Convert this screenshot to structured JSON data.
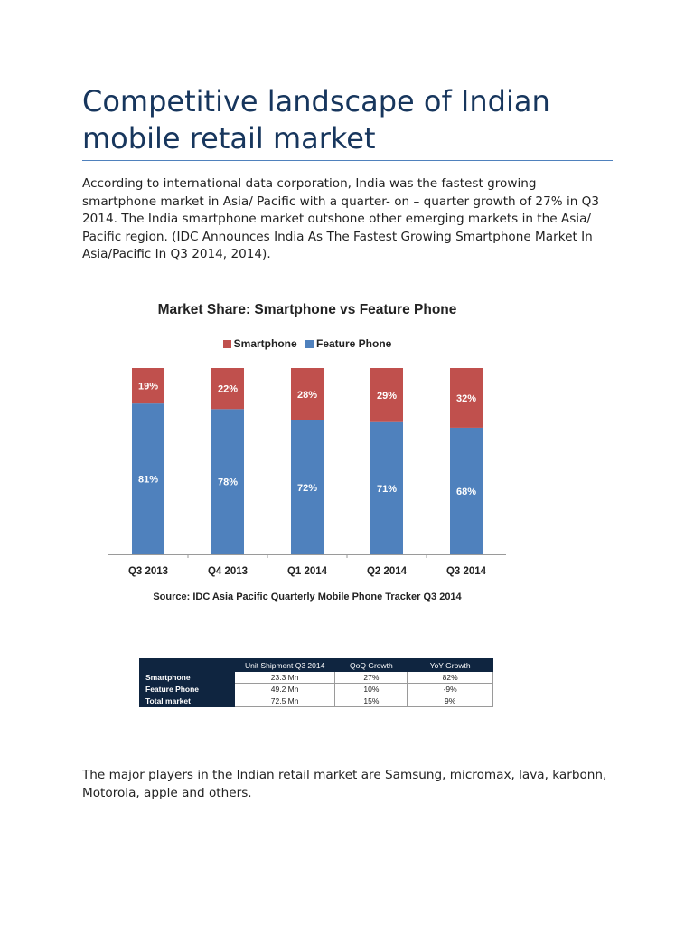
{
  "title": "Competitive landscape of Indian mobile retail market",
  "intro": "According to international data corporation, India was the fastest growing smartphone market in Asia/ Pacific with a quarter- on – quarter growth of 27% in Q3 2014. The India smartphone market outshone other emerging markets in the Asia/ Pacific region. (IDC Announces India As The Fastest Growing Smartphone Market In Asia/Pacific In Q3 2014, 2014).",
  "closing": "The major players in the Indian retail market are Samsung, micromax, lava, karbonn, Motorola, apple and others.",
  "colors": {
    "smartphone": "#c0504d",
    "feature_phone": "#4f81bd",
    "title": "#17365d"
  },
  "chart_data": {
    "type": "bar",
    "stacked": true,
    "title": "Market Share: Smartphone vs Feature Phone",
    "source": "Source: IDC Asia Pacific Quarterly Mobile Phone Tracker Q3 2014",
    "legend_position": "top",
    "categories": [
      "Q3 2013",
      "Q4 2013",
      "Q1 2014",
      "Q2 2014",
      "Q3 2014"
    ],
    "series": [
      {
        "name": "Feature Phone",
        "values": [
          81,
          78,
          72,
          71,
          68
        ],
        "labels": [
          "81%",
          "78%",
          "72%",
          "71%",
          "68%"
        ],
        "color": "#4f81bd"
      },
      {
        "name": "Smartphone",
        "values": [
          19,
          22,
          28,
          29,
          32
        ],
        "labels": [
          "19%",
          "22%",
          "28%",
          "29%",
          "32%"
        ],
        "color": "#c0504d"
      }
    ],
    "legend": [
      "Smartphone",
      "Feature Phone"
    ],
    "ylim": [
      0,
      100
    ],
    "grid": false
  },
  "table": {
    "headers": [
      "",
      "Unit Shipment Q3 2014",
      "QoQ Growth",
      "YoY Growth"
    ],
    "rows": [
      [
        "Smartphone",
        "23.3 Mn",
        "27%",
        "82%"
      ],
      [
        "Feature Phone",
        "49.2 Mn",
        "10%",
        "-9%"
      ],
      [
        "Total market",
        "72.5 Mn",
        "15%",
        "9%"
      ]
    ]
  }
}
